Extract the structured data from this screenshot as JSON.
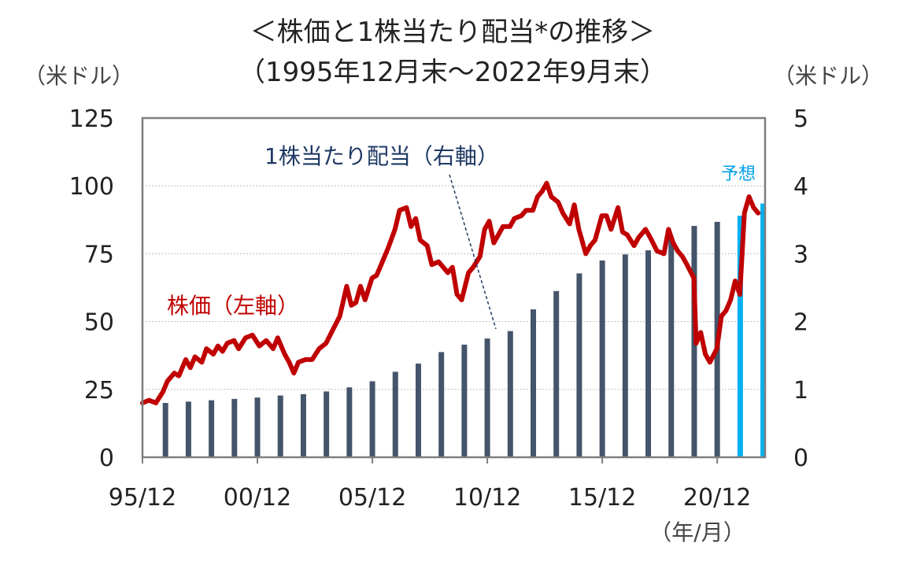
{
  "title": "＜株価と1株当たり配当*の推移＞",
  "subtitle": "（1995年12月末～2022年9月末）",
  "left_unit": "（米ドル）",
  "right_unit": "（米ドル）",
  "x_unit": "（年/月）",
  "annotations": {
    "price_label": "株価（左軸）",
    "dividend_label": "1株当たり配当（右軸）",
    "forecast_label": "予想"
  },
  "colors": {
    "price_line": "#c00000",
    "dividend_bar": "#44546a",
    "forecast_bar": "#00b0f0",
    "dividend_label": "#1f3864",
    "axis": "#7f7f7f",
    "grid": "#bfbfbf"
  },
  "chart_data": {
    "type": "bar+line",
    "x_range": [
      1995.917,
      2023.0
    ],
    "x_ticks": [
      "95/12",
      "00/12",
      "05/12",
      "10/12",
      "15/12",
      "20/12"
    ],
    "x_tick_values": [
      1995.917,
      2000.917,
      2005.917,
      2010.917,
      2015.917,
      2020.917
    ],
    "left_axis": {
      "ylim": [
        0,
        125
      ],
      "ticks": [
        0,
        25,
        50,
        75,
        100,
        125
      ]
    },
    "right_axis": {
      "ylim": [
        0,
        5
      ],
      "ticks": [
        0,
        1,
        2,
        3,
        4,
        5
      ]
    },
    "grid": true,
    "series": [
      {
        "name": "1株当たり配当（右軸）",
        "axis": "right",
        "type": "bar",
        "x": [
          1996.917,
          1997.917,
          1998.917,
          1999.917,
          2000.917,
          2001.917,
          2002.917,
          2003.917,
          2004.917,
          2005.917,
          2006.917,
          2007.917,
          2008.917,
          2009.917,
          2010.917,
          2011.917,
          2012.917,
          2013.917,
          2014.917,
          2015.917,
          2016.917,
          2017.917,
          2018.917,
          2019.917,
          2020.917
        ],
        "values": [
          0.8,
          0.82,
          0.84,
          0.86,
          0.88,
          0.91,
          0.93,
          0.97,
          1.03,
          1.12,
          1.26,
          1.38,
          1.55,
          1.66,
          1.75,
          1.86,
          2.18,
          2.45,
          2.71,
          2.9,
          2.99,
          3.05,
          3.23,
          3.41,
          3.47
        ]
      },
      {
        "name": "予想",
        "axis": "right",
        "type": "bar",
        "x": [
          2021.917,
          2022.917
        ],
        "values": [
          3.56,
          3.74
        ]
      },
      {
        "name": "株価（左軸）",
        "axis": "left",
        "type": "line",
        "x": [
          1995.917,
          1996.2,
          1996.5,
          1996.8,
          1997.0,
          1997.3,
          1997.5,
          1997.8,
          1998.0,
          1998.2,
          1998.5,
          1998.7,
          1999.0,
          1999.2,
          1999.4,
          1999.6,
          1999.9,
          2000.1,
          2000.4,
          2000.7,
          2001.0,
          2001.3,
          2001.6,
          2001.8,
          2002.1,
          2002.3,
          2002.5,
          2002.7,
          2003.0,
          2003.3,
          2003.6,
          2003.9,
          2004.2,
          2004.5,
          2004.8,
          2005.0,
          2005.2,
          2005.4,
          2005.6,
          2005.9,
          2006.1,
          2006.4,
          2006.6,
          2006.9,
          2007.1,
          2007.4,
          2007.6,
          2007.8,
          2008.0,
          2008.3,
          2008.5,
          2008.8,
          2009.0,
          2009.2,
          2009.4,
          2009.6,
          2009.8,
          2010.1,
          2010.3,
          2010.6,
          2010.8,
          2011.0,
          2011.2,
          2011.4,
          2011.6,
          2011.9,
          2012.1,
          2012.4,
          2012.6,
          2012.9,
          2013.1,
          2013.3,
          2013.5,
          2013.7,
          2014.0,
          2014.2,
          2014.5,
          2014.7,
          2014.9,
          2015.2,
          2015.4,
          2015.6,
          2015.9,
          2016.1,
          2016.3,
          2016.6,
          2016.8,
          2017.0,
          2017.3,
          2017.5,
          2017.8,
          2018.0,
          2018.3,
          2018.6,
          2018.8,
          2019.0,
          2019.2,
          2019.4,
          2019.6,
          2019.9,
          2020.0,
          2020.2,
          2020.4,
          2020.6,
          2020.9,
          2021.1,
          2021.3,
          2021.5,
          2021.7,
          2021.9,
          2022.1,
          2022.3,
          2022.5,
          2022.7
        ],
        "values": [
          20,
          21,
          20,
          24,
          28,
          31,
          30,
          36,
          33,
          37,
          35,
          40,
          38,
          41,
          39,
          42,
          43,
          40,
          44,
          45,
          41,
          43,
          40,
          44,
          38,
          35,
          31,
          35,
          36,
          36,
          40,
          42,
          47,
          52,
          63,
          56,
          57,
          63,
          58,
          66,
          67,
          73,
          77,
          84,
          91,
          92,
          85,
          88,
          80,
          78,
          71,
          72,
          70,
          68,
          70,
          60,
          58,
          68,
          70,
          74,
          84,
          87,
          79,
          82,
          85,
          85,
          88,
          89,
          91,
          91,
          96,
          98,
          101,
          96,
          94,
          90,
          86,
          93,
          84,
          75,
          78,
          80,
          89,
          89,
          84,
          92,
          83,
          82,
          78,
          81,
          84,
          81,
          76,
          75,
          84,
          79,
          76,
          74,
          71,
          66,
          42,
          46,
          38,
          35,
          40,
          52,
          54,
          58,
          65,
          60,
          90,
          96,
          92,
          90
        ]
      }
    ]
  }
}
